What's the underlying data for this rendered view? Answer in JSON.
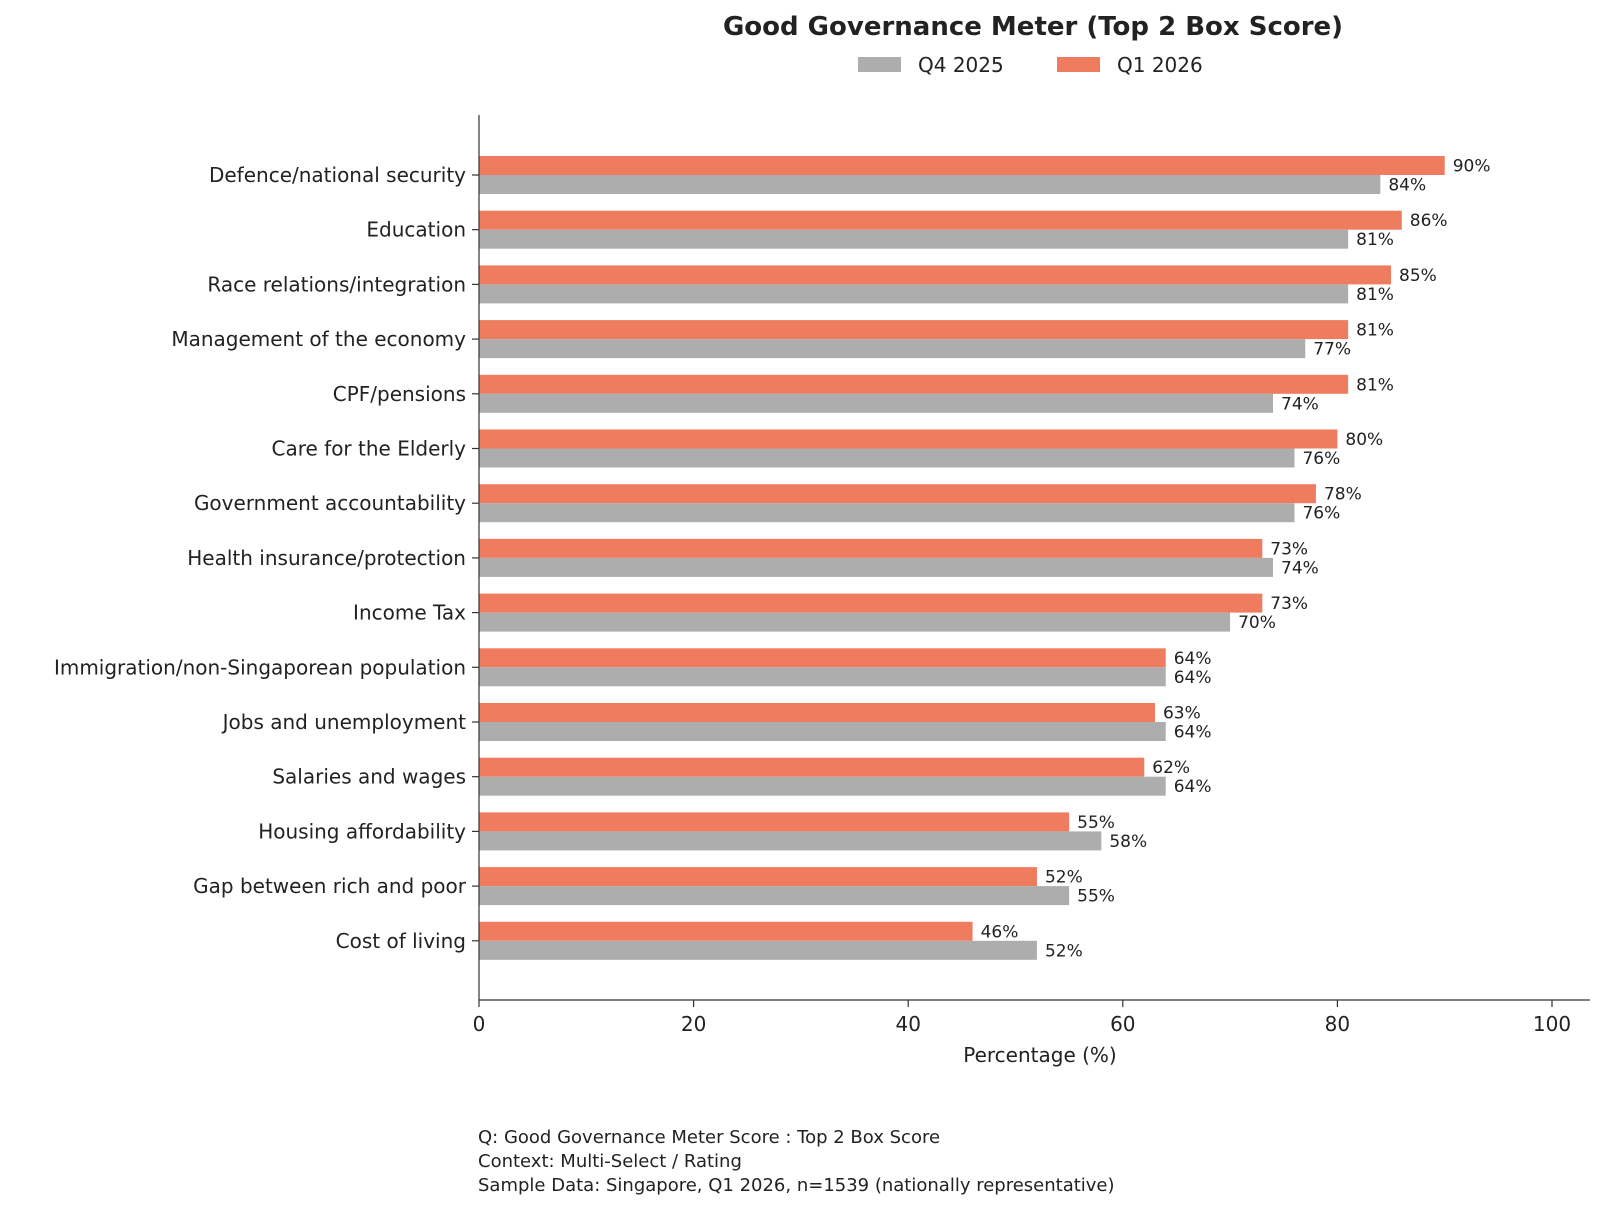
{
  "chart_data": {
    "type": "bar",
    "orientation": "horizontal",
    "title": "Good Governance Meter (Top 2 Box Score)",
    "xlabel": "Percentage (%)",
    "ylabel": "",
    "xlim": [
      0,
      100
    ],
    "xticks": [
      0,
      20,
      40,
      60,
      80,
      100
    ],
    "legend_position": "top-center",
    "grid": false,
    "value_suffix": "%",
    "categories": [
      "Defence/national security",
      "Education",
      "Race relations/integration",
      "Management of the economy",
      "CPF/pensions",
      "Care for the Elderly",
      "Government accountability",
      "Health insurance/protection",
      "Income Tax",
      "Immigration/non-Singaporean population",
      "Jobs and unemployment",
      "Salaries and wages",
      "Housing affordability",
      "Gap between rich and poor",
      "Cost of living"
    ],
    "series": [
      {
        "name": "Q4 2025",
        "color": "#adadad",
        "values": [
          84,
          81,
          81,
          77,
          74,
          76,
          76,
          74,
          70,
          64,
          64,
          64,
          58,
          55,
          52
        ]
      },
      {
        "name": "Q1 2026",
        "color": "#ef7c5e",
        "values": [
          90,
          86,
          85,
          81,
          81,
          80,
          78,
          73,
          73,
          64,
          63,
          62,
          55,
          52,
          46
        ]
      }
    ]
  },
  "footnote": {
    "line1": "Q: Good Governance Meter Score : Top 2 Box Score",
    "line2": "Context: Multi-Select / Rating",
    "line3": "Sample Data: Singapore, Q1 2026, n=1539 (nationally representative)"
  }
}
